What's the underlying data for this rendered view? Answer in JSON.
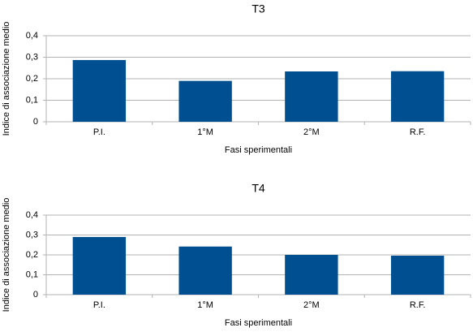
{
  "chart_data": [
    {
      "type": "bar",
      "title": "T3",
      "x_label": "Fasi sperimentali",
      "y_label": "Indice di associazione medio",
      "categories": [
        "P.I.",
        "1°M",
        "2°M",
        "R.F."
      ],
      "values": [
        0.287,
        0.19,
        0.234,
        0.235
      ],
      "color": "#004f91",
      "ylim": [
        0,
        0.4
      ],
      "yticks": [
        0,
        {
          "value": 0.1,
          "label": "0,1"
        },
        {
          "value": 0.2,
          "label": "0,2"
        },
        {
          "value": 0.3,
          "label": "0,3"
        },
        {
          "value": 0.4,
          "label": "0,4"
        }
      ],
      "grid": true
    },
    {
      "type": "bar",
      "title": "T4",
      "x_label": "Fasi sperimentali",
      "y_label": "Indice di associazione medio",
      "categories": [
        "P.I.",
        "1°M",
        "2°M",
        "R.F."
      ],
      "values": [
        0.29,
        0.242,
        0.2,
        0.196
      ],
      "color": "#004f91",
      "ylim": [
        0,
        0.4
      ],
      "yticks": [
        0,
        {
          "value": 0.1,
          "label": "0,1"
        },
        {
          "value": 0.2,
          "label": "0,2"
        },
        {
          "value": 0.3,
          "label": "0,3"
        },
        {
          "value": 0.4,
          "label": "0,4"
        }
      ],
      "grid": true
    }
  ]
}
